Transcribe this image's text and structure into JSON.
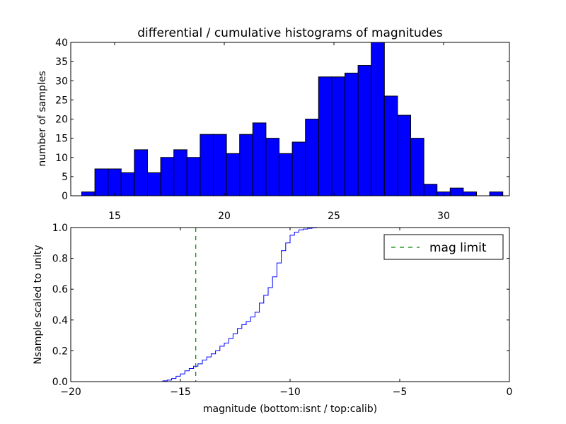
{
  "chart_data": [
    {
      "type": "bar",
      "title": "differential / cumulative histograms of magnitudes",
      "xlabel": "",
      "ylabel": "number of samples",
      "xlim": [
        13.0,
        33.0
      ],
      "ylim": [
        0,
        40
      ],
      "bin_start": 13.5,
      "bin_width": 0.6,
      "values": [
        1,
        7,
        7,
        6,
        12,
        6,
        10,
        12,
        10,
        16,
        16,
        11,
        16,
        19,
        15,
        11,
        14,
        20,
        31,
        31,
        32,
        34,
        40,
        26,
        21,
        15,
        3,
        1,
        2,
        1,
        0,
        1
      ],
      "bar_color": "#0000ff",
      "xticks": [
        15,
        20,
        25,
        30
      ],
      "xtick_labels": [
        "15",
        "20",
        "25",
        "30"
      ],
      "yticks": [
        0,
        5,
        10,
        15,
        20,
        25,
        30,
        35,
        40
      ],
      "ytick_labels": [
        "0",
        "5",
        "10",
        "15",
        "20",
        "25",
        "30",
        "35",
        "40"
      ],
      "grid": false
    },
    {
      "type": "line",
      "title": "",
      "xlabel": "magnitude (bottom:isnt / top:calib)",
      "ylabel": "Nsample scaled to unity",
      "xlim": [
        -20,
        0
      ],
      "ylim": [
        0,
        1.0
      ],
      "series": [
        {
          "style": "step",
          "color": "#0000ff",
          "x": [
            -20.0,
            -16.0,
            -15.8,
            -15.6,
            -15.4,
            -15.2,
            -15.0,
            -14.8,
            -14.6,
            -14.4,
            -14.2,
            -14.0,
            -13.8,
            -13.6,
            -13.4,
            -13.2,
            -13.0,
            -12.8,
            -12.6,
            -12.4,
            -12.2,
            -12.0,
            -11.8,
            -11.6,
            -11.4,
            -11.2,
            -11.0,
            -10.8,
            -10.6,
            -10.4,
            -10.2,
            -10.0,
            -9.8,
            -9.6,
            -9.4,
            -9.2,
            -9.0,
            -8.8,
            -8.6,
            -8.4
          ],
          "y": [
            0.0,
            0.0,
            0.005,
            0.01,
            0.02,
            0.035,
            0.05,
            0.07,
            0.085,
            0.1,
            0.115,
            0.14,
            0.16,
            0.18,
            0.2,
            0.23,
            0.25,
            0.28,
            0.31,
            0.345,
            0.37,
            0.39,
            0.42,
            0.45,
            0.51,
            0.56,
            0.61,
            0.68,
            0.77,
            0.85,
            0.9,
            0.95,
            0.97,
            0.985,
            0.99,
            0.995,
            0.998,
            1.0,
            1.0,
            1.0
          ]
        },
        {
          "name": "mag limit",
          "style": "vline-dashed",
          "color": "#008000",
          "x_value": -14.3
        }
      ],
      "xticks": [
        -20,
        -15,
        -10,
        -5,
        0
      ],
      "xtick_labels": [
        "−20",
        "−15",
        "−10",
        "−5",
        "0"
      ],
      "yticks": [
        0.0,
        0.2,
        0.4,
        0.6,
        0.8,
        1.0
      ],
      "ytick_labels": [
        "0.0",
        "0.2",
        "0.4",
        "0.6",
        "0.8",
        "1.0"
      ],
      "legend": {
        "placement": "top-right",
        "entries": [
          "mag limit"
        ]
      },
      "grid": false
    }
  ]
}
